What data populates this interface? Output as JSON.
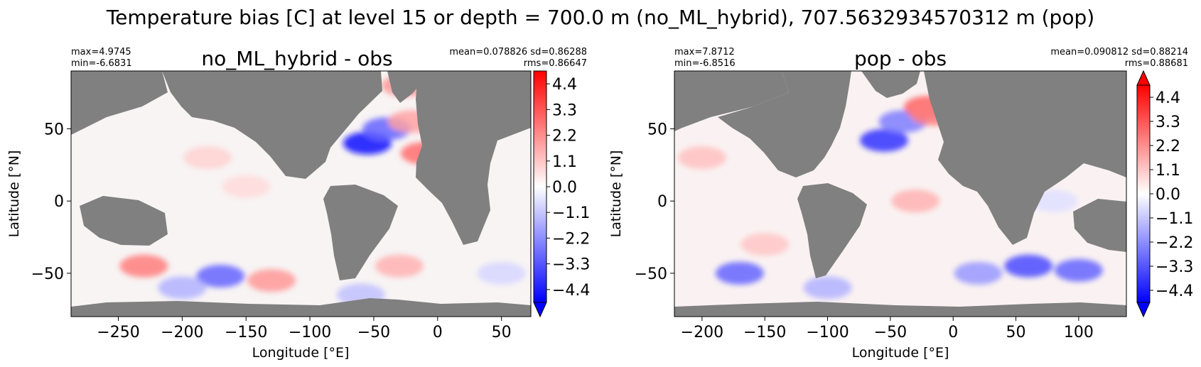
{
  "figure": {
    "suptitle": "Temperature bias [C] at level 15 or depth = 700.0 m (no_ML_hybrid), 707.5632934570312 m (pop)"
  },
  "colors": {
    "land": "#808080",
    "cmap_low": "#0000ff",
    "cmap_mid": "#ffffff",
    "cmap_high": "#ff0000"
  },
  "chart_data": [
    {
      "type": "heatmap",
      "title": "no_ML_hybrid - obs",
      "stats_left": [
        "max=4.9745",
        "min=-6.6831"
      ],
      "stats_right": [
        "mean=0.078826 sd=0.86288",
        "rms=0.86647"
      ],
      "xlabel": "Longitude [°E]",
      "ylabel": "Latitude [°N]",
      "xlim": [
        -287,
        73
      ],
      "ylim": [
        -80,
        90
      ],
      "xticks": [
        -250,
        -200,
        -150,
        -100,
        -50,
        0,
        50
      ],
      "xtick_labels": [
        "−250",
        "−200",
        "−150",
        "−100",
        "−50",
        "0",
        "50"
      ],
      "yticks": [
        50,
        0,
        -50
      ],
      "ytick_labels": [
        "50",
        "0",
        "−50"
      ],
      "colorbar": {
        "vmin": -4.95,
        "vmax": 4.95,
        "ticks": [
          4.4,
          3.3,
          2.2,
          1.1,
          0.0,
          -1.1,
          -2.2,
          -3.3,
          -4.4
        ],
        "tick_labels": [
          "4.4",
          "3.3",
          "2.2",
          "1.1",
          "0.0",
          "−1.1",
          "−2.2",
          "−3.3",
          "−4.4"
        ],
        "extend": "min"
      },
      "field_features": [
        {
          "lon": -55,
          "lat": 40,
          "value": -4.6
        },
        {
          "lon": -40,
          "lat": 50,
          "value": -3.0
        },
        {
          "lon": -20,
          "lat": 55,
          "value": 1.8
        },
        {
          "lon": -10,
          "lat": 33,
          "value": 2.8
        },
        {
          "lon": -25,
          "lat": 80,
          "value": 2.0
        },
        {
          "lon": -180,
          "lat": 30,
          "value": 0.9
        },
        {
          "lon": -150,
          "lat": 10,
          "value": 0.7
        },
        {
          "lon": -230,
          "lat": -45,
          "value": 2.5
        },
        {
          "lon": -130,
          "lat": -55,
          "value": 2.0
        },
        {
          "lon": -30,
          "lat": -45,
          "value": 1.5
        },
        {
          "lon": -170,
          "lat": -52,
          "value": -3.0
        },
        {
          "lon": -60,
          "lat": -65,
          "value": -1.2
        },
        {
          "lon": -200,
          "lat": -60,
          "value": -1.5
        },
        {
          "lon": 50,
          "lat": -50,
          "value": -0.8
        }
      ]
    },
    {
      "type": "heatmap",
      "title": "pop - obs",
      "stats_left": [
        "max=7.8712",
        "min=-6.8516"
      ],
      "stats_right": [
        "mean=0.090812 sd=0.88214",
        "rms=0.88681"
      ],
      "xlabel": "Longitude [°E]",
      "ylabel": "Latitude [°N]",
      "xlim": [
        -222,
        138
      ],
      "ylim": [
        -80,
        90
      ],
      "xticks": [
        -200,
        -150,
        -100,
        -50,
        0,
        50,
        100
      ],
      "xtick_labels": [
        "−200",
        "−150",
        "−100",
        "−50",
        "0",
        "50",
        "100"
      ],
      "yticks": [
        50,
        0,
        -50
      ],
      "ytick_labels": [
        "50",
        "0",
        "−50"
      ],
      "colorbar": {
        "vmin": -4.95,
        "vmax": 4.95,
        "ticks": [
          4.4,
          3.3,
          2.2,
          1.1,
          0.0,
          -1.1,
          -2.2,
          -3.3,
          -4.4
        ],
        "tick_labels": [
          "4.4",
          "3.3",
          "2.2",
          "1.1",
          "0.0",
          "−1.1",
          "−2.2",
          "−3.3",
          "−4.4"
        ],
        "extend": "both"
      },
      "field_features": [
        {
          "lon": -55,
          "lat": 42,
          "value": -4.0
        },
        {
          "lon": -40,
          "lat": 55,
          "value": -2.5
        },
        {
          "lon": -20,
          "lat": 65,
          "value": 3.0
        },
        {
          "lon": -15,
          "lat": 60,
          "value": 2.5
        },
        {
          "lon": -30,
          "lat": 0,
          "value": 1.5
        },
        {
          "lon": -200,
          "lat": 30,
          "value": 1.2
        },
        {
          "lon": -150,
          "lat": -30,
          "value": 1.1
        },
        {
          "lon": 60,
          "lat": -45,
          "value": -3.5
        },
        {
          "lon": 100,
          "lat": -48,
          "value": -3.0
        },
        {
          "lon": 20,
          "lat": -50,
          "value": -2.0
        },
        {
          "lon": -170,
          "lat": -50,
          "value": -3.0
        },
        {
          "lon": -100,
          "lat": -60,
          "value": -1.5
        },
        {
          "lon": 80,
          "lat": 0,
          "value": -0.6
        }
      ]
    }
  ]
}
